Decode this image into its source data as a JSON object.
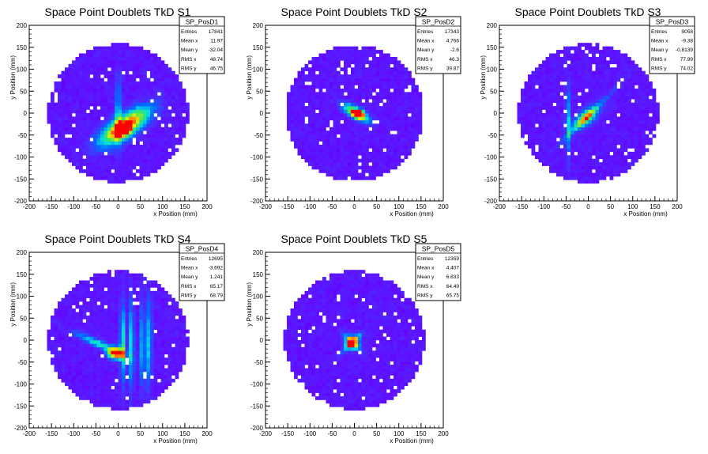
{
  "chart_data": [
    {
      "type": "heatmap",
      "title": "Space Point Doublets TkD S1",
      "xlabel": "x Position (mm)",
      "ylabel": "y Position (mm)",
      "xlim": [
        -200,
        200
      ],
      "ylim": [
        -200,
        200
      ],
      "xticks": [
        -200,
        -150,
        -100,
        -50,
        0,
        50,
        100,
        150,
        200
      ],
      "yticks": [
        -200,
        -150,
        -100,
        -50,
        0,
        50,
        100,
        150,
        200
      ],
      "stats": {
        "name": "SP_PosD1",
        "rows": [
          {
            "label": "Entries",
            "value": "17841"
          },
          {
            "label": "Mean x",
            "value": "11.97"
          },
          {
            "label": "Mean y",
            "value": "-32.04"
          },
          {
            "label": "RMS x",
            "value": "48.74"
          },
          {
            "label": "RMS y",
            "value": "46.75"
          }
        ]
      },
      "disk_radius": 158,
      "hotspots": [
        {
          "x": 15,
          "y": -30,
          "sx": 45,
          "sy": 16,
          "angle": 35,
          "amp": 1.0
        },
        {
          "x": 10,
          "y": -38,
          "sx": 10,
          "sy": 8,
          "angle": 0,
          "amp": 1.0
        },
        {
          "x": 0,
          "y": 0,
          "sx": 5,
          "sy": 50,
          "angle": 0,
          "amp": 0.35
        }
      ]
    },
    {
      "type": "heatmap",
      "title": "Space Point Doublets TkD S2",
      "xlabel": "x Position (mm)",
      "ylabel": "y Position (mm)",
      "xlim": [
        -200,
        200
      ],
      "ylim": [
        -200,
        200
      ],
      "xticks": [
        -200,
        -150,
        -100,
        -50,
        0,
        50,
        100,
        150,
        200
      ],
      "yticks": [
        -200,
        -150,
        -100,
        -50,
        0,
        50,
        100,
        150,
        200
      ],
      "stats": {
        "name": "SP_PosD2",
        "rows": [
          {
            "label": "Entries",
            "value": "17343"
          },
          {
            "label": "Mean x",
            "value": "4.766"
          },
          {
            "label": "Mean y",
            "value": "-2.6"
          },
          {
            "label": "RMS x",
            "value": "46.3"
          },
          {
            "label": "RMS y",
            "value": "39.87"
          }
        ]
      },
      "disk_radius": 155,
      "hotspots": [
        {
          "x": 5,
          "y": 0,
          "sx": 22,
          "sy": 8,
          "angle": -30,
          "amp": 0.9
        },
        {
          "x": 8,
          "y": -2,
          "sx": 7,
          "sy": 6,
          "angle": 0,
          "amp": 1.0
        }
      ]
    },
    {
      "type": "heatmap",
      "title": "Space Point Doublets TkD S3",
      "xlabel": "x Position (mm)",
      "ylabel": "y Position (mm)",
      "xlim": [
        -200,
        200
      ],
      "ylim": [
        -200,
        200
      ],
      "xticks": [
        -200,
        -150,
        -100,
        -50,
        0,
        50,
        100,
        150,
        200
      ],
      "yticks": [
        -200,
        -150,
        -100,
        -50,
        0,
        50,
        100,
        150,
        200
      ],
      "stats": {
        "name": "SP_PosD3",
        "rows": [
          {
            "label": "Entries",
            "value": "9058"
          },
          {
            "label": "Mean x",
            "value": "-9.38"
          },
          {
            "label": "Mean y",
            "value": "-0.8139"
          },
          {
            "label": "RMS x",
            "value": "77.99"
          },
          {
            "label": "RMS y",
            "value": "74.02"
          }
        ]
      },
      "disk_radius": 158,
      "hotspots": [
        {
          "x": -5,
          "y": -10,
          "sx": 22,
          "sy": 10,
          "angle": 40,
          "amp": 0.7
        },
        {
          "x": -5,
          "y": -10,
          "sx": 60,
          "sy": 4,
          "angle": 45,
          "amp": 0.3
        },
        {
          "x": -45,
          "y": -20,
          "sx": 4,
          "sy": 55,
          "angle": 0,
          "amp": 0.35
        }
      ]
    },
    {
      "type": "heatmap",
      "title": "Space Point Doublets TkD S4",
      "xlabel": "x Position (mm)",
      "ylabel": "y Position (mm)",
      "xlim": [
        -200,
        200
      ],
      "ylim": [
        -200,
        200
      ],
      "xticks": [
        -200,
        -150,
        -100,
        -50,
        0,
        50,
        100,
        150,
        200
      ],
      "yticks": [
        -200,
        -150,
        -100,
        -50,
        0,
        50,
        100,
        150,
        200
      ],
      "stats": {
        "name": "SP_PosD4",
        "rows": [
          {
            "label": "Entries",
            "value": "12695"
          },
          {
            "label": "Mean x",
            "value": "-3.692"
          },
          {
            "label": "Mean y",
            "value": "1.241"
          },
          {
            "label": "RMS x",
            "value": "65.17"
          },
          {
            "label": "RMS y",
            "value": "68.79"
          }
        ]
      },
      "disk_radius": 158,
      "hotspots": [
        {
          "x": -5,
          "y": -30,
          "sx": 12,
          "sy": 9,
          "angle": 0,
          "amp": 1.0
        },
        {
          "x": -40,
          "y": -10,
          "sx": 40,
          "sy": 6,
          "angle": -25,
          "amp": 0.45
        },
        {
          "x": 10,
          "y": -5,
          "sx": 4,
          "sy": 60,
          "angle": 0,
          "amp": 0.5
        },
        {
          "x": 30,
          "y": -10,
          "sx": 4,
          "sy": 70,
          "angle": 0,
          "amp": 0.45
        },
        {
          "x": 55,
          "y": -15,
          "sx": 4,
          "sy": 65,
          "angle": 0,
          "amp": 0.4
        },
        {
          "x": 70,
          "y": -5,
          "sx": 4,
          "sy": 70,
          "angle": 0,
          "amp": 0.4
        }
      ]
    },
    {
      "type": "heatmap",
      "title": "Space Point Doublets TkD S5",
      "xlabel": "x Position (mm)",
      "ylabel": "y Position (mm)",
      "xlim": [
        -200,
        200
      ],
      "ylim": [
        -200,
        200
      ],
      "xticks": [
        -200,
        -150,
        -100,
        -50,
        0,
        50,
        100,
        150,
        200
      ],
      "yticks": [
        -200,
        -150,
        -100,
        -50,
        0,
        50,
        100,
        150,
        200
      ],
      "stats": {
        "name": "SP_PosD5",
        "rows": [
          {
            "label": "Entries",
            "value": "12359"
          },
          {
            "label": "Mean x",
            "value": "4.407"
          },
          {
            "label": "Mean y",
            "value": "6.833"
          },
          {
            "label": "RMS x",
            "value": "64.49"
          },
          {
            "label": "RMS y",
            "value": "65.75"
          }
        ]
      },
      "disk_radius": 158,
      "hotspots": [
        {
          "x": -5,
          "y": -5,
          "sx": 10,
          "sy": 10,
          "angle": 0,
          "amp": 1.0
        },
        {
          "x": -5,
          "y": -5,
          "sx": 25,
          "sy": 4,
          "angle": 45,
          "amp": 0.35
        },
        {
          "x": -5,
          "y": -5,
          "sx": 25,
          "sy": 4,
          "angle": -45,
          "amp": 0.3
        }
      ]
    }
  ]
}
